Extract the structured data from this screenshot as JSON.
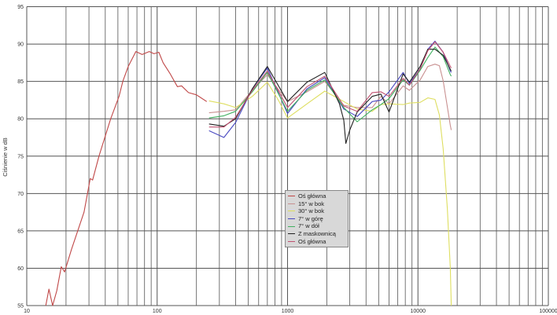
{
  "chart_data": {
    "type": "line",
    "title": "",
    "xlabel": "",
    "ylabel": "Ciśnienie w dB",
    "x_scale": "log",
    "xlim": [
      10,
      100000
    ],
    "ylim": [
      55,
      95
    ],
    "x_ticks": [
      "10",
      "100",
      "1000",
      "10000",
      "100000"
    ],
    "y_ticks": [
      "55",
      "60",
      "65",
      "70",
      "75",
      "80",
      "85",
      "90",
      "95"
    ],
    "grid": true,
    "legend_position": "center",
    "series": [
      {
        "name": "Oś główna",
        "color": "#c04848",
        "points": [
          [
            14,
            55
          ],
          [
            14.8,
            57.2
          ],
          [
            15.8,
            55
          ],
          [
            17,
            57
          ],
          [
            18.4,
            60.2
          ],
          [
            19.5,
            59.5
          ],
          [
            22,
            62.5
          ],
          [
            27.5,
            67.5
          ],
          [
            30.7,
            72
          ],
          [
            32,
            71.8
          ],
          [
            35.8,
            75
          ],
          [
            44,
            80
          ],
          [
            51,
            83
          ],
          [
            54.5,
            85
          ],
          [
            60,
            87
          ],
          [
            68.7,
            89
          ],
          [
            76.8,
            88.6
          ],
          [
            87,
            89
          ],
          [
            94.6,
            88.7
          ],
          [
            103,
            88.9
          ],
          [
            111,
            87.5
          ],
          [
            126,
            86
          ],
          [
            143,
            84.3
          ],
          [
            154,
            84.4
          ],
          [
            174,
            83.5
          ],
          [
            200,
            83.2
          ],
          [
            240,
            82.3
          ]
        ]
      },
      {
        "name": "15° w bok",
        "color": "#c89090",
        "points": [
          [
            250,
            80.8
          ],
          [
            325,
            81
          ],
          [
            400,
            81.2
          ],
          [
            537,
            83.8
          ],
          [
            700,
            85.9
          ],
          [
            1000,
            82.3
          ],
          [
            1410,
            83.6
          ],
          [
            1930,
            85
          ],
          [
            2700,
            81.8
          ],
          [
            3420,
            81.5
          ],
          [
            4460,
            81.5
          ],
          [
            5200,
            83
          ],
          [
            6000,
            82
          ],
          [
            7700,
            84.4
          ],
          [
            8600,
            83.8
          ],
          [
            10400,
            85.2
          ],
          [
            11900,
            87
          ],
          [
            13500,
            87.3
          ],
          [
            14600,
            87.1
          ],
          [
            15600,
            85.1
          ],
          [
            17700,
            79.1
          ],
          [
            18000,
            78.5
          ]
        ]
      },
      {
        "name": "30° w bok",
        "color": "#dede60",
        "points": [
          [
            250,
            82.4
          ],
          [
            325,
            82
          ],
          [
            400,
            81.5
          ],
          [
            537,
            83
          ],
          [
            700,
            84.9
          ],
          [
            850,
            82.5
          ],
          [
            1000,
            80.1
          ],
          [
            1410,
            82
          ],
          [
            1930,
            83.7
          ],
          [
            2700,
            82.3
          ],
          [
            3420,
            81.3
          ],
          [
            4460,
            81
          ],
          [
            5200,
            81.9
          ],
          [
            6000,
            82
          ],
          [
            7700,
            81.9
          ],
          [
            8600,
            82.1
          ],
          [
            10400,
            82.2
          ],
          [
            11900,
            82.8
          ],
          [
            13500,
            82.6
          ],
          [
            14600,
            80.5
          ],
          [
            15600,
            76
          ],
          [
            16800,
            68
          ],
          [
            17700,
            60
          ],
          [
            18000,
            55
          ]
        ]
      },
      {
        "name": "7° w górę",
        "color": "#4848c0",
        "points": [
          [
            250,
            78.4
          ],
          [
            325,
            77.5
          ],
          [
            400,
            79.5
          ],
          [
            537,
            84
          ],
          [
            700,
            86.8
          ],
          [
            1000,
            80.7
          ],
          [
            1410,
            84
          ],
          [
            1930,
            85.5
          ],
          [
            2700,
            81.3
          ],
          [
            3420,
            80.3
          ],
          [
            4460,
            82.3
          ],
          [
            5200,
            82.5
          ],
          [
            6000,
            83.6
          ],
          [
            7700,
            86.2
          ],
          [
            8600,
            84.7
          ],
          [
            10400,
            86.7
          ],
          [
            11900,
            89.3
          ],
          [
            13500,
            90.4
          ],
          [
            15600,
            88.9
          ],
          [
            17700,
            86.4
          ],
          [
            18000,
            86.2
          ]
        ]
      },
      {
        "name": "7° w dół",
        "color": "#40b060",
        "points": [
          [
            250,
            80.1
          ],
          [
            325,
            80.4
          ],
          [
            400,
            81
          ],
          [
            537,
            83.6
          ],
          [
            700,
            86.2
          ],
          [
            1000,
            81
          ],
          [
            1410,
            83.8
          ],
          [
            1930,
            85.2
          ],
          [
            2700,
            81.5
          ],
          [
            3420,
            79.6
          ],
          [
            4460,
            81.2
          ],
          [
            5200,
            81.9
          ],
          [
            6000,
            82.7
          ],
          [
            7700,
            85.2
          ],
          [
            8600,
            84.5
          ],
          [
            10400,
            86.5
          ],
          [
            11900,
            88.2
          ],
          [
            13500,
            89.6
          ],
          [
            15600,
            88.3
          ],
          [
            17700,
            85.9
          ],
          [
            18000,
            85.7
          ]
        ]
      },
      {
        "name": "Z  maskownicą",
        "color": "#202020",
        "points": [
          [
            250,
            79.3
          ],
          [
            325,
            79
          ],
          [
            400,
            80
          ],
          [
            537,
            84
          ],
          [
            700,
            87
          ],
          [
            1000,
            82.3
          ],
          [
            1410,
            84.9
          ],
          [
            1930,
            86.2
          ],
          [
            2500,
            82
          ],
          [
            2700,
            79.8
          ],
          [
            2800,
            76.7
          ],
          [
            3000,
            78.5
          ],
          [
            3420,
            80.9
          ],
          [
            4460,
            83
          ],
          [
            5200,
            83.3
          ],
          [
            6000,
            80.9
          ],
          [
            7700,
            86
          ],
          [
            8600,
            84.9
          ],
          [
            10400,
            87
          ],
          [
            11900,
            89.3
          ],
          [
            13500,
            89.3
          ],
          [
            15600,
            88.5
          ],
          [
            17700,
            86.6
          ],
          [
            18000,
            86.4
          ]
        ]
      },
      {
        "name": "Oś  główna",
        "color": "#c05070",
        "points": [
          [
            250,
            78.9
          ],
          [
            325,
            78.9
          ],
          [
            400,
            80.2
          ],
          [
            537,
            83.8
          ],
          [
            700,
            86.4
          ],
          [
            1000,
            81.5
          ],
          [
            1410,
            84.3
          ],
          [
            1930,
            85.7
          ],
          [
            2700,
            81.7
          ],
          [
            3420,
            81
          ],
          [
            4460,
            83.5
          ],
          [
            5200,
            83.6
          ],
          [
            6000,
            83
          ],
          [
            7700,
            85.4
          ],
          [
            8600,
            84.5
          ],
          [
            10400,
            86.7
          ],
          [
            11900,
            89.1
          ],
          [
            13500,
            90.3
          ],
          [
            15600,
            88.9
          ],
          [
            17700,
            87
          ],
          [
            18000,
            86.8
          ]
        ]
      }
    ]
  }
}
